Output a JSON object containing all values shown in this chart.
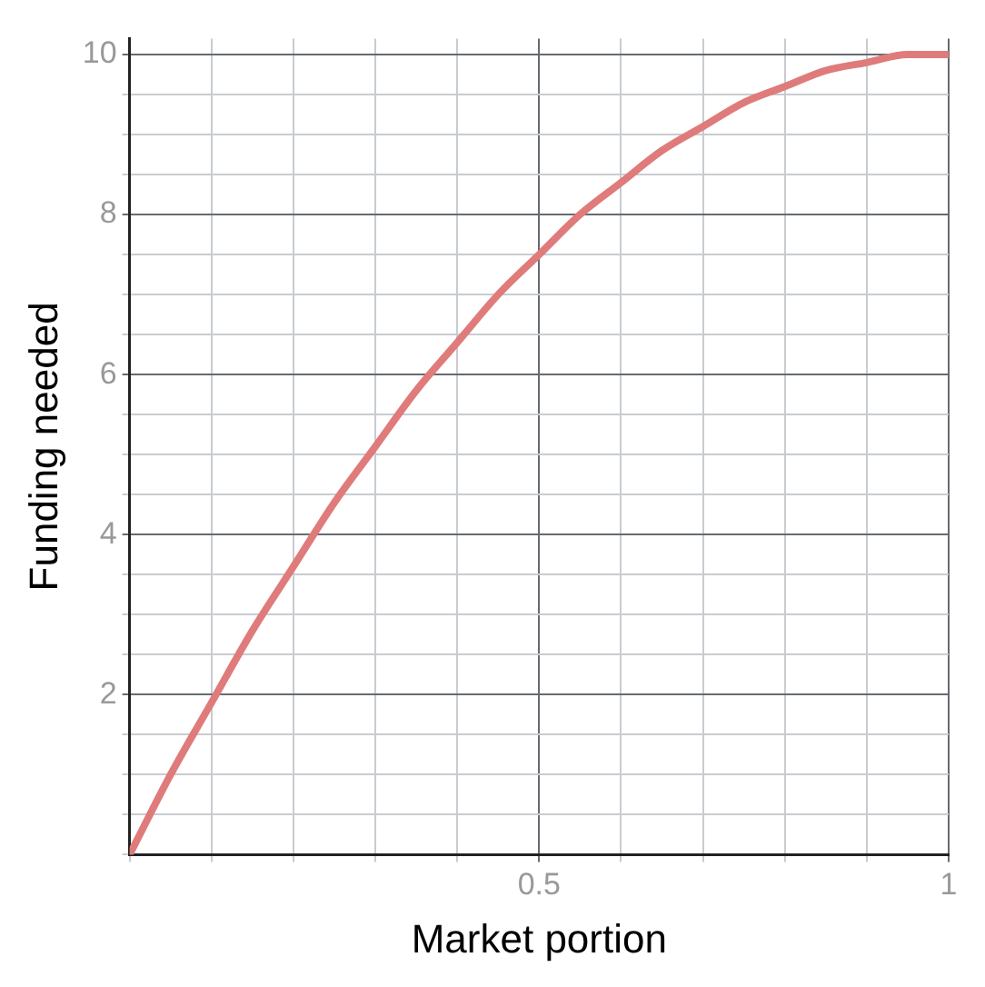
{
  "chart_data": {
    "type": "line",
    "xlabel": "Market portion",
    "ylabel": "Funding needed",
    "x": [
      0,
      0.05,
      0.1,
      0.15,
      0.2,
      0.25,
      0.3,
      0.35,
      0.4,
      0.45,
      0.5,
      0.55,
      0.6,
      0.65,
      0.7,
      0.75,
      0.8,
      0.85,
      0.9,
      0.95,
      1
    ],
    "series": [
      {
        "color": "#e07b7b",
        "values": [
          0,
          1.0,
          1.9,
          2.8,
          3.6,
          4.4,
          5.1,
          5.8,
          6.4,
          7.0,
          7.5,
          8.0,
          8.4,
          8.8,
          9.1,
          9.4,
          9.6,
          9.8,
          9.9,
          10.0,
          10.0
        ]
      }
    ],
    "xlim": [
      0,
      1
    ],
    "ylim": [
      0,
      10.2
    ],
    "xticks": [
      {
        "value": 0,
        "label": null
      },
      {
        "value": 0.1,
        "label": null
      },
      {
        "value": 0.2,
        "label": null
      },
      {
        "value": 0.3,
        "label": null
      },
      {
        "value": 0.4,
        "label": null
      },
      0.5,
      {
        "value": 0.6,
        "label": null
      },
      {
        "value": 0.7,
        "label": null
      },
      {
        "value": 0.8,
        "label": null
      },
      {
        "value": 0.9,
        "label": null
      },
      1
    ],
    "yticks": [
      {
        "value": 0,
        "label": null
      },
      {
        "value": 0.5,
        "label": null
      },
      {
        "value": 1,
        "label": null
      },
      {
        "value": 1.5,
        "label": null
      },
      2,
      {
        "value": 2.5,
        "label": null
      },
      {
        "value": 3,
        "label": null
      },
      {
        "value": 3.5,
        "label": null
      },
      4,
      {
        "value": 4.5,
        "label": null
      },
      {
        "value": 5,
        "label": null
      },
      {
        "value": 5.5,
        "label": null
      },
      6,
      {
        "value": 6.5,
        "label": null
      },
      {
        "value": 7,
        "label": null
      },
      {
        "value": 7.5,
        "label": null
      },
      8,
      {
        "value": 8.5,
        "label": null
      },
      {
        "value": 9,
        "label": null
      },
      {
        "value": 9.5,
        "label": null
      },
      10
    ],
    "grid": true,
    "legend": false,
    "marker": "none",
    "line_style": "solid"
  }
}
